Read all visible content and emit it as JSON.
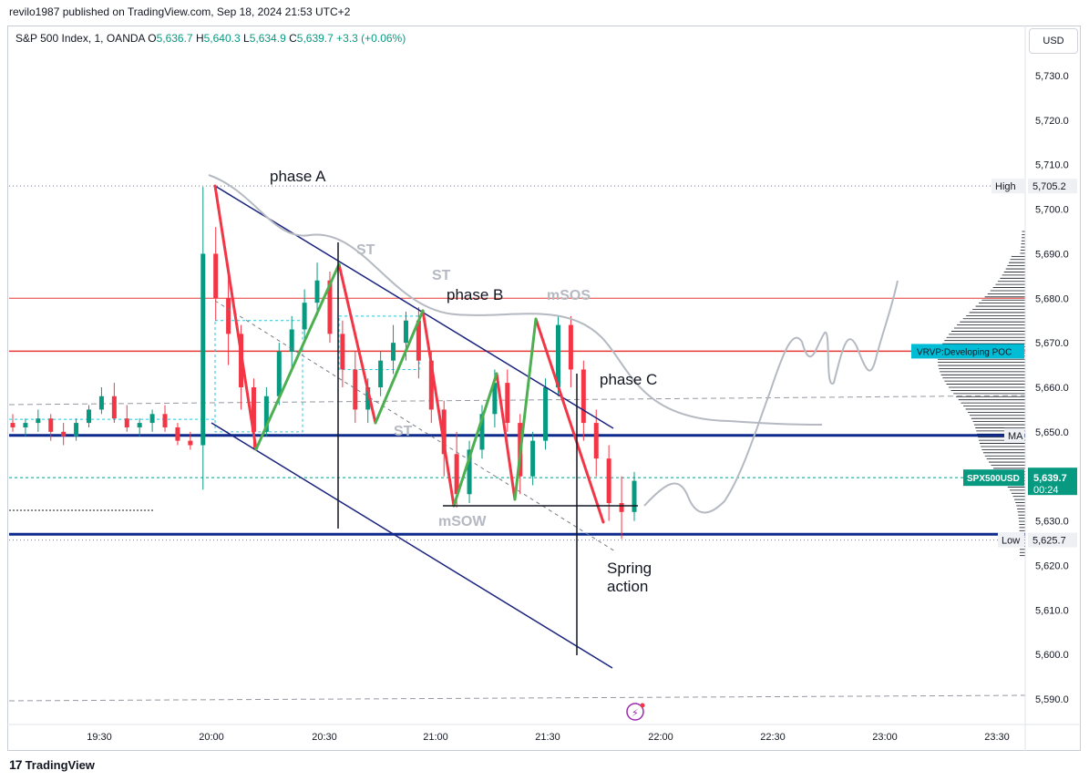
{
  "header": {
    "published_by": "revilo1987 published on TradingView.com, Sep 18, 2024 21:53 UTC+2"
  },
  "legend": {
    "symbol": "S&P 500 Index, 1, OANDA",
    "o_label": "O",
    "o_value": "5,636.7",
    "h_label": "H",
    "h_value": "5,640.3",
    "l_label": "L",
    "l_value": "5,634.9",
    "c_label": "C",
    "c_value": "5,639.7",
    "change": "+3.3 (+0.06%)"
  },
  "currency_button": "USD",
  "footer": {
    "brand": "TradingView",
    "logo_glyph": "17"
  },
  "colors": {
    "up": "#089981",
    "down": "#f23645",
    "channel": "#1a237e",
    "ma": "#0d2a8c",
    "annot_grey": "#b5b9c2",
    "red_line": "#e53935",
    "vrvp_tag": "#00bcd4",
    "label_dark": "#2a2e39"
  },
  "chart_data": {
    "type": "candlestick",
    "ylim": [
      5585,
      5736
    ],
    "y_ticks": [
      "5,590.0",
      "5,600.0",
      "5,610.0",
      "5,620.0",
      "5,630.0",
      "5,640.0",
      "5,650.0",
      "5,660.0",
      "5,670.0",
      "5,680.0",
      "5,690.0",
      "5,700.0",
      "5,710.0",
      "5,720.0",
      "5,730.0"
    ],
    "x_ticks": [
      "19:30",
      "20:00",
      "20:30",
      "21:00",
      "21:30",
      "22:00",
      "22:30",
      "23:00",
      "23:30"
    ],
    "price_tags": [
      {
        "label": "High",
        "value": "5,705.2",
        "price": 5705.2,
        "bg": "#eef0f3",
        "fg": "#131722"
      },
      {
        "label": "MA",
        "value": "",
        "price": 5649.2,
        "bg": "#eef0f3",
        "fg": "#131722"
      },
      {
        "label": "SPX500USD",
        "value": "5,639.7",
        "value2": "00:24",
        "price": 5639.7,
        "bg": "#089981",
        "fg": "#ffffff"
      },
      {
        "label": "Low",
        "value": "5,625.7",
        "price": 5625.7,
        "bg": "#eef0f3",
        "fg": "#131722"
      },
      {
        "label": "VRVP:Developing POC",
        "value": "",
        "price": 5668.1,
        "bg": "#00bcd4",
        "fg": "#131722"
      }
    ],
    "annotations": [
      {
        "text": "phase A",
        "color": "#131722"
      },
      {
        "text": "phase B",
        "color": "#131722"
      },
      {
        "text": "phase C",
        "color": "#131722"
      },
      {
        "text": "Spring",
        "color": "#131722"
      },
      {
        "text": "action",
        "color": "#131722"
      },
      {
        "text": "ST",
        "color": "#b5b9c2"
      },
      {
        "text": "ST",
        "color": "#b5b9c2"
      },
      {
        "text": "ST",
        "color": "#b5b9c2"
      },
      {
        "text": "mSOS",
        "color": "#b5b9c2"
      },
      {
        "text": "mSOW",
        "color": "#b5b9c2"
      }
    ],
    "horizontal_levels": [
      {
        "name": "MA",
        "price": 5649.2
      },
      {
        "name": "support",
        "price": 5627.0
      },
      {
        "name": "resistance-red",
        "price": 5680.0
      },
      {
        "name": "VRVP POC",
        "price": 5668.1
      }
    ],
    "ohlc_samples": [
      [
        5652,
        5654,
        5650,
        5651
      ],
      [
        5651,
        5653,
        5649,
        5652
      ],
      [
        5652,
        5655,
        5650,
        5653
      ],
      [
        5653,
        5654,
        5648,
        5650
      ],
      [
        5650,
        5652,
        5647,
        5649
      ],
      [
        5649,
        5653,
        5648,
        5652
      ],
      [
        5652,
        5656,
        5651,
        5655
      ],
      [
        5655,
        5660,
        5654,
        5658
      ],
      [
        5658,
        5661,
        5652,
        5653
      ],
      [
        5653,
        5656,
        5650,
        5651
      ],
      [
        5651,
        5653,
        5649,
        5652
      ],
      [
        5652,
        5655,
        5650,
        5654
      ],
      [
        5654,
        5656,
        5650,
        5651
      ],
      [
        5651,
        5652,
        5647,
        5648
      ],
      [
        5648,
        5650,
        5646,
        5647
      ],
      [
        5647,
        5705,
        5637,
        5690
      ],
      [
        5690,
        5696,
        5675,
        5680
      ],
      [
        5680,
        5686,
        5665,
        5672
      ],
      [
        5672,
        5674,
        5655,
        5660
      ],
      [
        5660,
        5662,
        5646,
        5650
      ],
      [
        5650,
        5660,
        5649,
        5658
      ],
      [
        5658,
        5670,
        5656,
        5668
      ],
      [
        5668,
        5676,
        5664,
        5673
      ],
      [
        5673,
        5682,
        5670,
        5679
      ],
      [
        5679,
        5688,
        5676,
        5684
      ],
      [
        5684,
        5686,
        5670,
        5672
      ],
      [
        5672,
        5675,
        5660,
        5664
      ],
      [
        5664,
        5668,
        5652,
        5655
      ],
      [
        5655,
        5662,
        5652,
        5660
      ],
      [
        5660,
        5668,
        5658,
        5666
      ],
      [
        5666,
        5674,
        5663,
        5670
      ],
      [
        5670,
        5677,
        5666,
        5675
      ],
      [
        5675,
        5678,
        5662,
        5666
      ],
      [
        5666,
        5668,
        5652,
        5655
      ],
      [
        5655,
        5657,
        5640,
        5645
      ],
      [
        5645,
        5650,
        5633,
        5636
      ],
      [
        5636,
        5648,
        5634,
        5646
      ],
      [
        5646,
        5656,
        5644,
        5654
      ],
      [
        5654,
        5664,
        5651,
        5661
      ],
      [
        5661,
        5664,
        5650,
        5652
      ],
      [
        5652,
        5654,
        5636,
        5640
      ],
      [
        5640,
        5650,
        5638,
        5648
      ],
      [
        5648,
        5662,
        5646,
        5660
      ],
      [
        5660,
        5676,
        5658,
        5674
      ],
      [
        5674,
        5676,
        5660,
        5664
      ],
      [
        5664,
        5666,
        5648,
        5652
      ],
      [
        5652,
        5655,
        5640,
        5644
      ],
      [
        5644,
        5647,
        5630,
        5634
      ],
      [
        5634,
        5640,
        5626,
        5632
      ],
      [
        5632,
        5641,
        5630,
        5639
      ]
    ]
  }
}
